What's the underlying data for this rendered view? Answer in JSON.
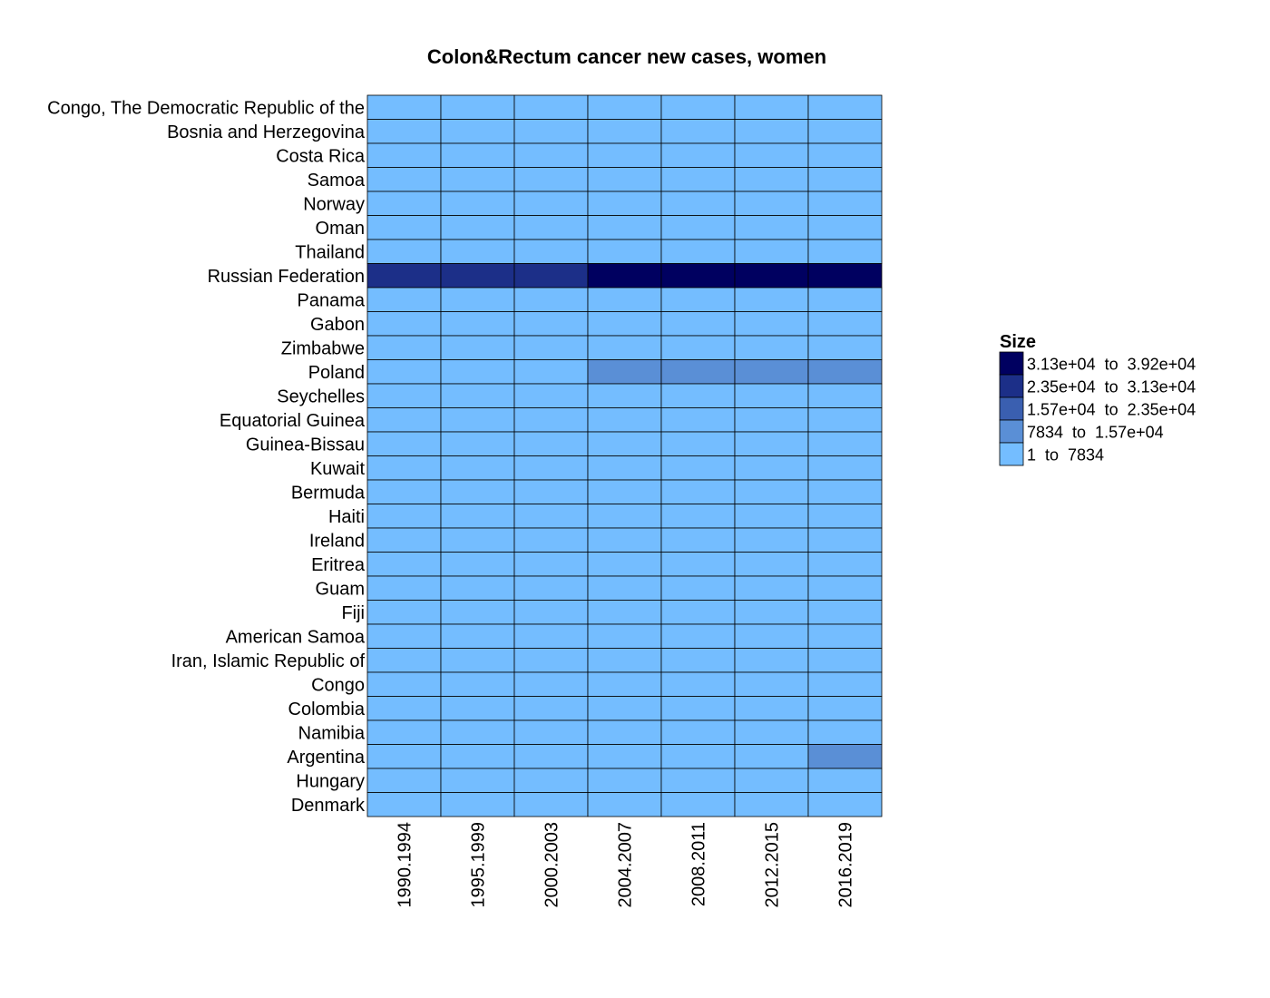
{
  "chart_data": {
    "type": "heatmap",
    "title": "Colon&Rectum cancer new cases, women",
    "x_categories": [
      "1990.1994",
      "1995.1999",
      "2000.2003",
      "2004.2007",
      "2008.2011",
      "2012.2015",
      "2016.2019"
    ],
    "y_categories": [
      "Congo, The Democratic Republic of the",
      "Bosnia and Herzegovina",
      "Costa Rica",
      "Samoa",
      "Norway",
      "Oman",
      "Thailand",
      "Russian Federation",
      "Panama",
      "Gabon",
      "Zimbabwe",
      "Poland",
      "Seychelles",
      "Equatorial Guinea",
      "Guinea-Bissau",
      "Kuwait",
      "Bermuda",
      "Haiti",
      "Ireland",
      "Eritrea",
      "Guam",
      "Fiji",
      "American Samoa",
      "Iran, Islamic Republic of",
      "Congo",
      "Colombia",
      "Namibia",
      "Argentina",
      "Hungary",
      "Denmark"
    ],
    "bin_index": [
      [
        0,
        0,
        0,
        0,
        0,
        0,
        0
      ],
      [
        0,
        0,
        0,
        0,
        0,
        0,
        0
      ],
      [
        0,
        0,
        0,
        0,
        0,
        0,
        0
      ],
      [
        0,
        0,
        0,
        0,
        0,
        0,
        0
      ],
      [
        0,
        0,
        0,
        0,
        0,
        0,
        0
      ],
      [
        0,
        0,
        0,
        0,
        0,
        0,
        0
      ],
      [
        0,
        0,
        0,
        0,
        0,
        0,
        0
      ],
      [
        3,
        3,
        3,
        4,
        4,
        4,
        4
      ],
      [
        0,
        0,
        0,
        0,
        0,
        0,
        0
      ],
      [
        0,
        0,
        0,
        0,
        0,
        0,
        0
      ],
      [
        0,
        0,
        0,
        0,
        0,
        0,
        0
      ],
      [
        0,
        0,
        0,
        1,
        1,
        1,
        1
      ],
      [
        0,
        0,
        0,
        0,
        0,
        0,
        0
      ],
      [
        0,
        0,
        0,
        0,
        0,
        0,
        0
      ],
      [
        0,
        0,
        0,
        0,
        0,
        0,
        0
      ],
      [
        0,
        0,
        0,
        0,
        0,
        0,
        0
      ],
      [
        0,
        0,
        0,
        0,
        0,
        0,
        0
      ],
      [
        0,
        0,
        0,
        0,
        0,
        0,
        0
      ],
      [
        0,
        0,
        0,
        0,
        0,
        0,
        0
      ],
      [
        0,
        0,
        0,
        0,
        0,
        0,
        0
      ],
      [
        0,
        0,
        0,
        0,
        0,
        0,
        0
      ],
      [
        0,
        0,
        0,
        0,
        0,
        0,
        0
      ],
      [
        0,
        0,
        0,
        0,
        0,
        0,
        0
      ],
      [
        0,
        0,
        0,
        0,
        0,
        0,
        0
      ],
      [
        0,
        0,
        0,
        0,
        0,
        0,
        0
      ],
      [
        0,
        0,
        0,
        0,
        0,
        0,
        0
      ],
      [
        0,
        0,
        0,
        0,
        0,
        0,
        0
      ],
      [
        0,
        0,
        0,
        0,
        0,
        0,
        1
      ],
      [
        0,
        0,
        0,
        0,
        0,
        0,
        0
      ],
      [
        0,
        0,
        0,
        0,
        0,
        0,
        0
      ]
    ],
    "legend": {
      "title": "Size",
      "placement": "right",
      "bins": [
        {
          "label": "1  to  7834",
          "color": "#74bdff"
        },
        {
          "label": "7834  to  1.57e+04",
          "color": "#5a8fd6"
        },
        {
          "label": "1.57e+04  to  2.35e+04",
          "color": "#3a5fb0"
        },
        {
          "label": "2.35e+04  to  3.13e+04",
          "color": "#1c2f88"
        },
        {
          "label": "3.13e+04  to  3.92e+04",
          "color": "#000060"
        }
      ]
    },
    "grid": true,
    "cell_border_color": "#000000"
  }
}
